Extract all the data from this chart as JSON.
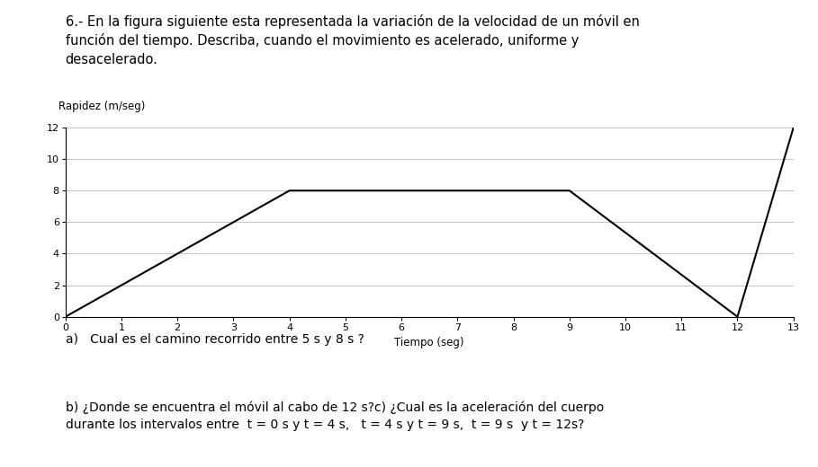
{
  "title_text": "6.- En la figura siguiente esta representada la variación de la velocidad de un móvil en\nfunción del tiempo. Describa, cuando el movimiento es acelerado, uniforme y\ndesacelerado.",
  "graph_ylabel": "Rapidez (m/seg)",
  "graph_xlabel": "Tiempo (seg)",
  "time_points": [
    0,
    1,
    4,
    9,
    12,
    13
  ],
  "velocity_points": [
    0,
    2,
    8,
    8,
    0,
    12
  ],
  "xlim": [
    0,
    13
  ],
  "ylim": [
    0,
    12
  ],
  "xticks": [
    0,
    1,
    2,
    3,
    4,
    5,
    6,
    7,
    8,
    9,
    10,
    11,
    12,
    13
  ],
  "yticks": [
    0,
    2,
    4,
    6,
    8,
    10,
    12
  ],
  "line_color": "#000000",
  "line_width": 1.5,
  "grid_color": "#aaaaaa",
  "grid_linewidth": 0.5,
  "background_color": "#ffffff",
  "text_color": "#000000",
  "footnote_a": "a)   Cual es el camino recorrido entre 5 s y 8 s ?",
  "footnote_b": "b) ¿Donde se encuentra el móvil al cabo de 12 s?c) ¿Cual es la aceleración del cuerpo\ndurante los intervalos entre  t = 0 s y t = 4 s,   t = 4 s y t = 9 s,  t = 9 s  y t = 12s?",
  "title_fontsize": 10.5,
  "axis_label_fontsize": 8.5,
  "tick_fontsize": 8,
  "footnote_fontsize": 10,
  "figsize": [
    9.09,
    5.2
  ],
  "dpi": 100
}
